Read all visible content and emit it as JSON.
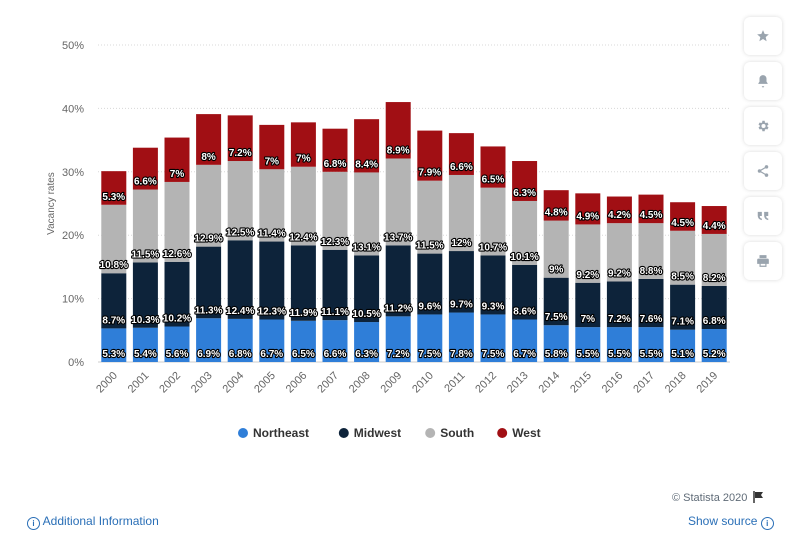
{
  "chart_data": {
    "type": "bar",
    "stacked": true,
    "title": "",
    "xlabel": "",
    "ylabel": "Vacancy rates",
    "ylim": [
      0,
      50
    ],
    "yticks": [
      "0%",
      "10%",
      "20%",
      "30%",
      "40%",
      "50%"
    ],
    "categories": [
      "2000",
      "2001",
      "2002",
      "2003",
      "2004",
      "2005",
      "2006",
      "2007",
      "2008",
      "2009",
      "2010",
      "2011",
      "2012",
      "2013",
      "2014",
      "2015",
      "2016",
      "2017",
      "2018",
      "2019"
    ],
    "series": [
      {
        "name": "Northeast",
        "color": "#2f7ed8",
        "values": [
          5.3,
          5.4,
          5.6,
          6.9,
          6.8,
          6.7,
          6.5,
          6.6,
          6.3,
          7.2,
          7.5,
          7.8,
          7.5,
          6.7,
          5.8,
          5.5,
          5.5,
          5.5,
          5.1,
          5.2
        ],
        "labels": [
          "5.3%",
          "5.4%",
          "5.6%",
          "6.9%",
          "6.8%",
          "6.7%",
          "6.5%",
          "6.6%",
          "6.3%",
          "7.2%",
          "7.5%",
          "7.8%",
          "7.5%",
          "6.7%",
          "5.8%",
          "5.5%",
          "5.5%",
          "5.5%",
          "5.1%",
          "5.2%"
        ]
      },
      {
        "name": "Midwest",
        "color": "#0d233a",
        "values": [
          8.7,
          10.3,
          10.2,
          11.3,
          12.4,
          12.3,
          11.9,
          11.1,
          10.5,
          11.2,
          9.6,
          9.7,
          9.3,
          8.6,
          7.5,
          7,
          7.2,
          7.6,
          7.1,
          6.8
        ],
        "labels": [
          "8.7%",
          "10.3%",
          "10.2%",
          "11.3%",
          "12.4%",
          "12.3%",
          "11.9%",
          "11.1%",
          "10.5%",
          "11.2%",
          "9.6%",
          "9.7%",
          "9.3%",
          "8.6%",
          "7.5%",
          "7%",
          "7.2%",
          "7.6%",
          "7.1%",
          "6.8%"
        ]
      },
      {
        "name": "South",
        "color": "#b4b4b4",
        "values": [
          10.8,
          11.5,
          12.6,
          12.9,
          12.5,
          11.4,
          12.4,
          12.3,
          13.1,
          13.7,
          11.5,
          12,
          10.7,
          10.1,
          9,
          9.2,
          9.2,
          8.8,
          8.5,
          8.2
        ],
        "labels": [
          "10.8%",
          "11.5%",
          "12.6%",
          "12.9%",
          "12.5%",
          "11.4%",
          "12.4%",
          "12.3%",
          "13.1%",
          "13.7%",
          "11.5%",
          "12%",
          "10.7%",
          "10.1%",
          "9%",
          "9.2%",
          "9.2%",
          "8.8%",
          "8.5%",
          "8.2%"
        ]
      },
      {
        "name": "West",
        "color": "#a10f14",
        "values": [
          5.3,
          6.6,
          7,
          8,
          7.2,
          7,
          7,
          6.8,
          8.4,
          8.9,
          7.9,
          6.6,
          6.5,
          6.3,
          4.8,
          4.9,
          4.2,
          4.5,
          4.5,
          4.4
        ],
        "labels": [
          "5.3%",
          "6.6%",
          "7%",
          "8%",
          "7.2%",
          "7%",
          "7%",
          "6.8%",
          "8.4%",
          "8.9%",
          "7.9%",
          "6.6%",
          "6.5%",
          "6.3%",
          "4.8%",
          "4.9%",
          "4.2%",
          "4.5%",
          "4.5%",
          "4.4%"
        ]
      }
    ],
    "legend_position": "bottom",
    "grid": true
  },
  "toolbar": {
    "items": [
      {
        "name": "favorite-button",
        "icon": "star-icon"
      },
      {
        "name": "alert-button",
        "icon": "bell-icon"
      },
      {
        "name": "settings-button",
        "icon": "gear-icon"
      },
      {
        "name": "share-button",
        "icon": "share-icon"
      },
      {
        "name": "cite-button",
        "icon": "quote-icon"
      },
      {
        "name": "print-button",
        "icon": "printer-icon"
      }
    ]
  },
  "footer": {
    "credit": "© Statista 2020",
    "additional_info": "Additional Information",
    "show_source": "Show source"
  }
}
